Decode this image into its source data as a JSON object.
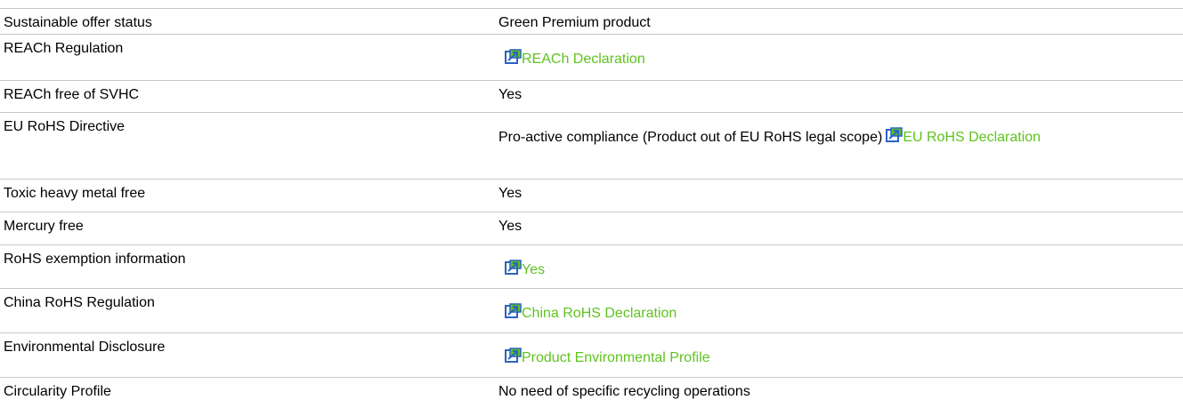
{
  "table": {
    "rows": [
      {
        "label": "Sustainable offer status",
        "value": "Green Premium product"
      },
      {
        "label": "REACh Regulation",
        "link": "REACh Declaration"
      },
      {
        "label": "REACh free of SVHC",
        "value": "Yes"
      },
      {
        "label": "EU RoHS Directive",
        "value": "Pro-active compliance (Product out of EU RoHS legal scope)",
        "link": "EU RoHS Declaration"
      },
      {
        "label": "Toxic heavy metal free",
        "value": "Yes"
      },
      {
        "label": "Mercury free",
        "value": "Yes"
      },
      {
        "label": "RoHS exemption information",
        "link": "Yes"
      },
      {
        "label": "China RoHS Regulation",
        "link": "China RoHS Declaration"
      },
      {
        "label": "Environmental Disclosure",
        "link": "Product Environmental Profile"
      },
      {
        "label": "Circularity Profile",
        "value": "No need of specific recycling operations"
      }
    ]
  }
}
